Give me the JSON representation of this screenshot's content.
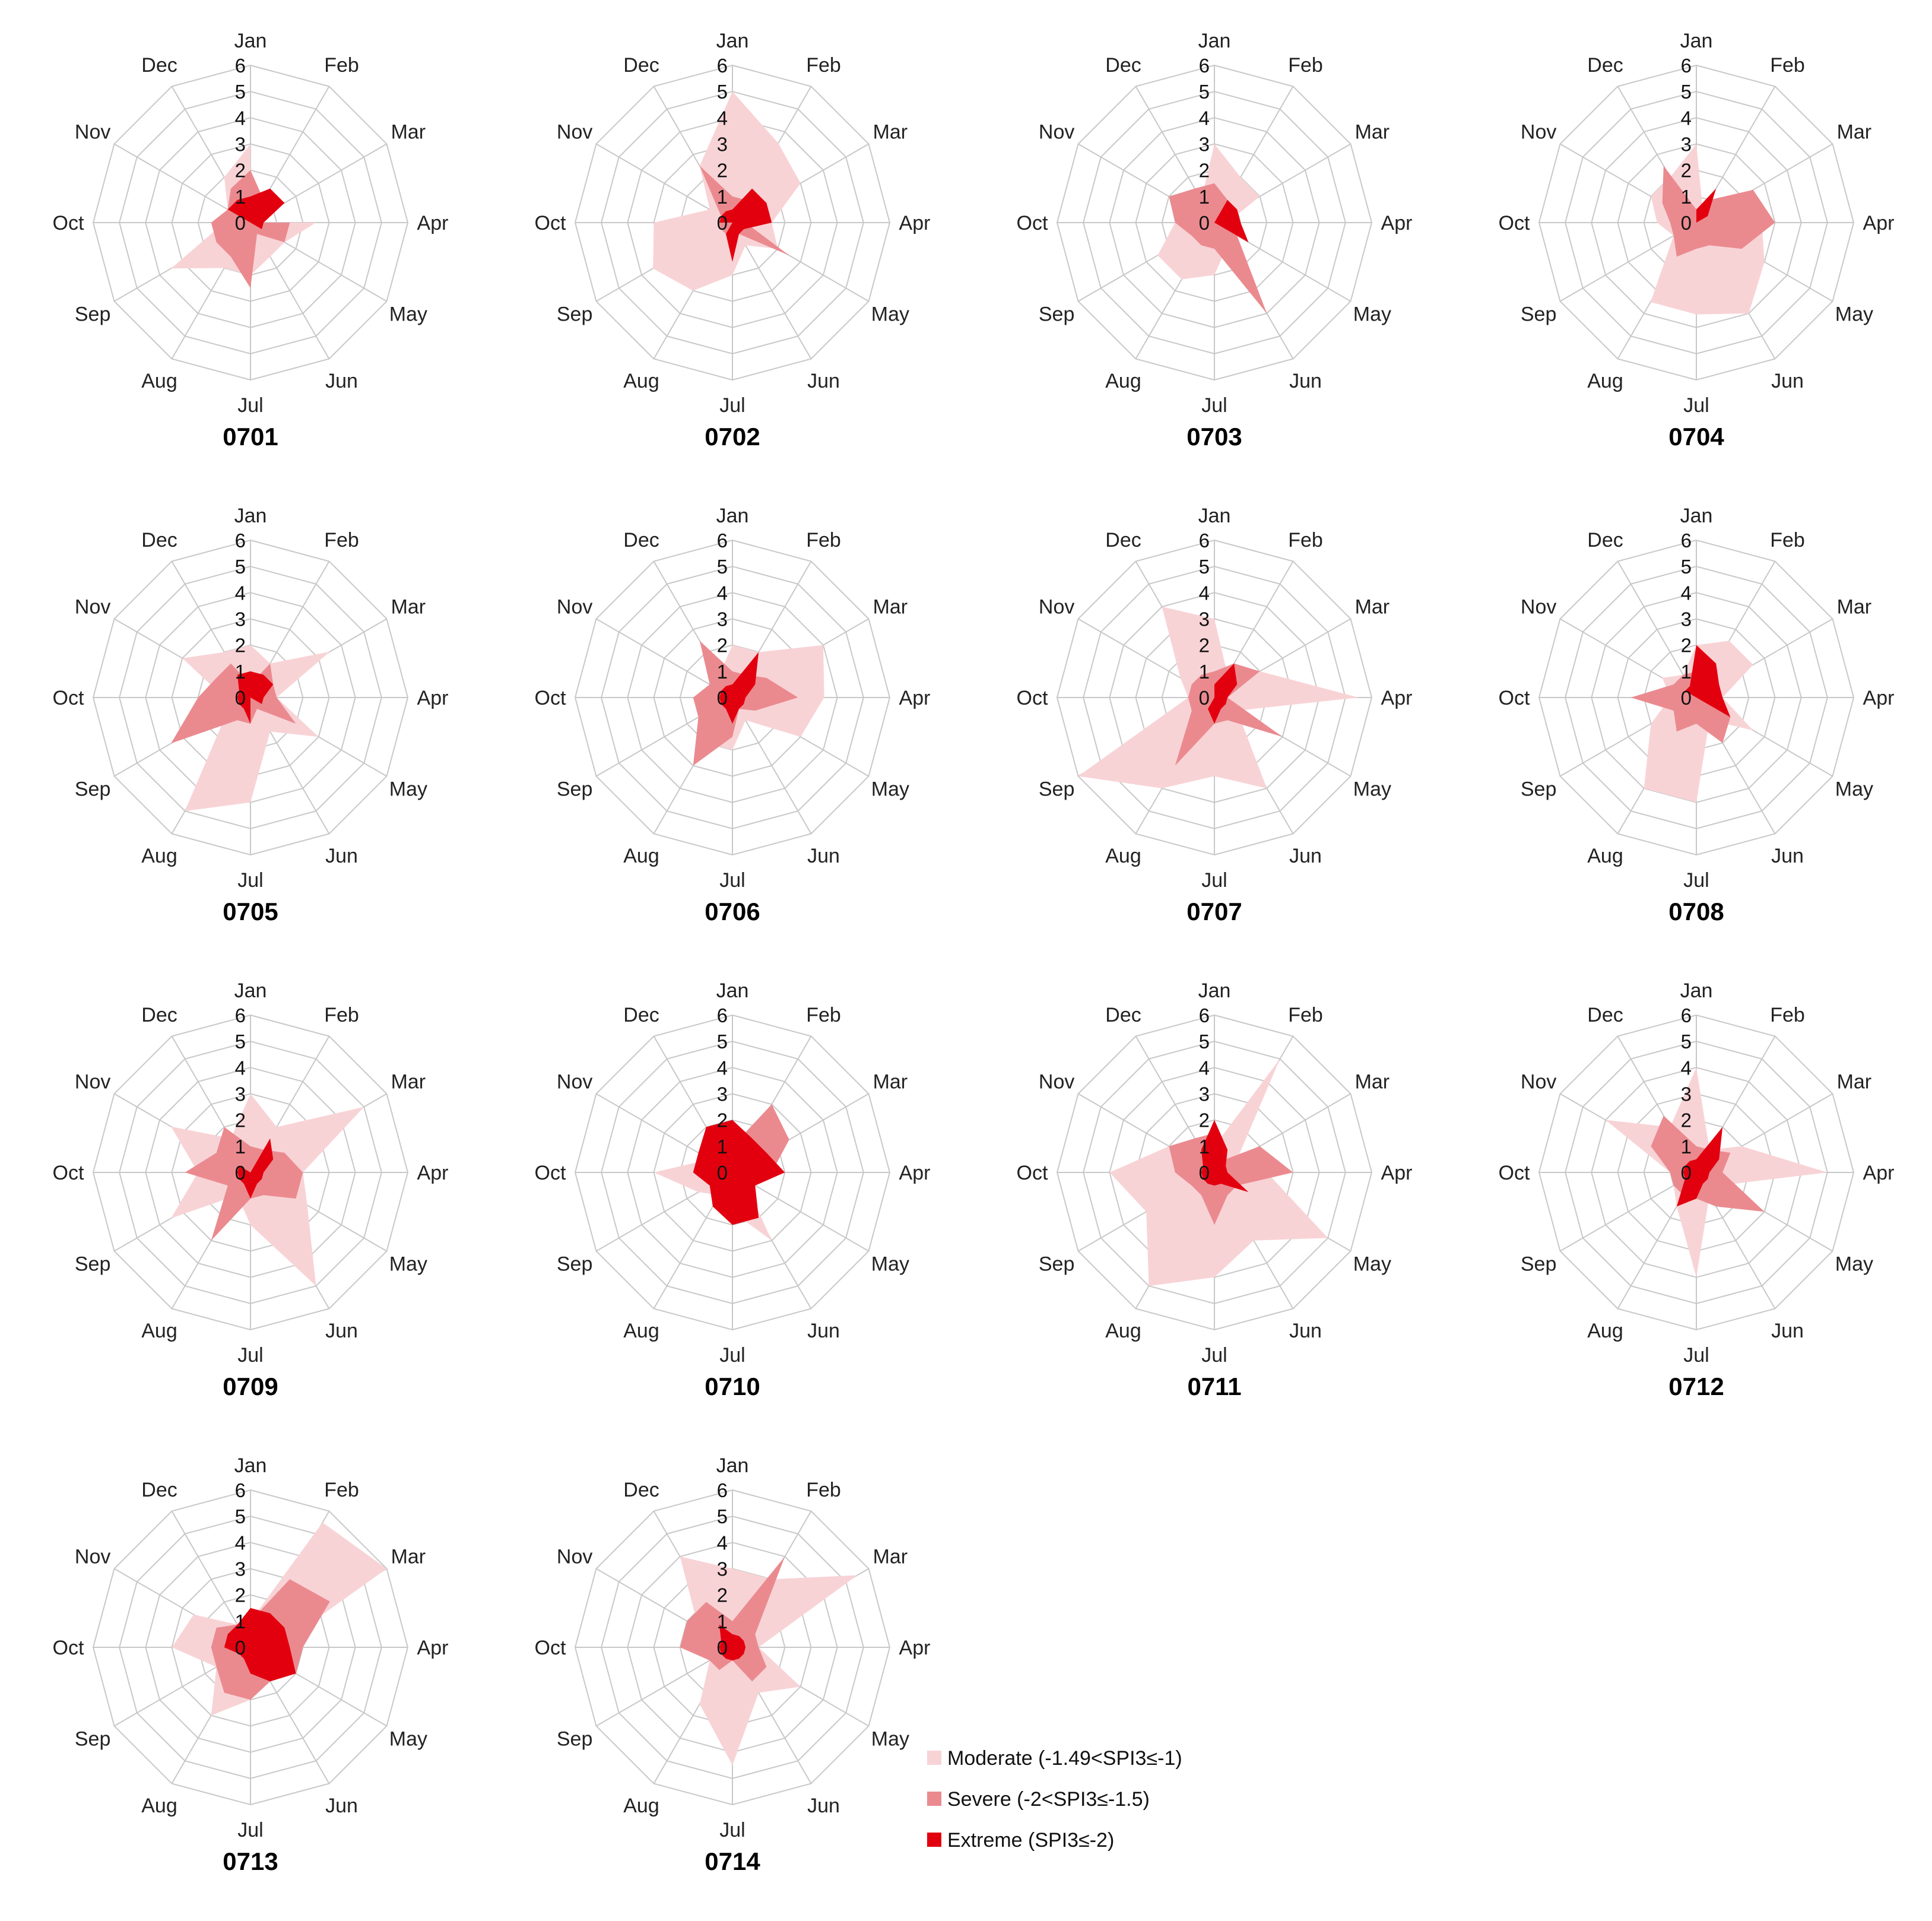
{
  "figure": {
    "legend": [
      {
        "label": "Moderate (-1.49<SPI3≤-1)",
        "color": "#f8d3d6"
      },
      {
        "label": "Severe (-2<SPI3≤-1.5)",
        "color": "#ea8a8f"
      },
      {
        "label": "Extreme (SPI3≤-2)",
        "color": "#e2000f"
      }
    ]
  },
  "chart_data": [
    {
      "type": "radar",
      "title": "0701",
      "categories": [
        "Jan",
        "Feb",
        "Mar",
        "Apr",
        "May",
        "Jun",
        "Jul",
        "Aug",
        "Sep",
        "Oct",
        "Nov",
        "Dec"
      ],
      "rmax": 6,
      "ticks": [
        "0",
        "1",
        "2",
        "3",
        "4",
        "5",
        "6"
      ],
      "series": [
        {
          "name": "Moderate",
          "values": [
            3,
            0,
            0,
            2.5,
            1.5,
            1.5,
            2,
            2,
            3.5,
            1,
            1,
            2
          ]
        },
        {
          "name": "Severe",
          "values": [
            2,
            1,
            0,
            1.5,
            1.5,
            0.5,
            2.5,
            1.5,
            1.5,
            1.5,
            1,
            1.5
          ]
        },
        {
          "name": "Extreme",
          "values": [
            1,
            1.5,
            1.5,
            0.5,
            0.5,
            0,
            1,
            0,
            0,
            0,
            1,
            1
          ]
        }
      ]
    },
    {
      "type": "radar",
      "title": "0702",
      "categories": [
        "Jan",
        "Feb",
        "Mar",
        "Apr",
        "May",
        "Jun",
        "Jul",
        "Aug",
        "Sep",
        "Oct",
        "Nov",
        "Dec"
      ],
      "rmax": 6,
      "ticks": [
        "0",
        "1",
        "2",
        "3",
        "4",
        "5",
        "6"
      ],
      "series": [
        {
          "name": "Moderate",
          "values": [
            5,
            3.5,
            3,
            1.5,
            2,
            1,
            2,
            3,
            3.5,
            3,
            1,
            2.5
          ]
        },
        {
          "name": "Severe",
          "values": [
            1,
            1,
            0.5,
            0.5,
            2.5,
            0.5,
            0.5,
            0.5,
            0.5,
            0.5,
            0.5,
            2.5
          ]
        },
        {
          "name": "Extreme",
          "values": [
            0.5,
            1.5,
            1.5,
            1.5,
            0.5,
            0.5,
            1.5,
            0.5,
            0,
            0.5,
            0.5,
            0.5
          ]
        }
      ]
    },
    {
      "type": "radar",
      "title": "0703",
      "categories": [
        "Jan",
        "Feb",
        "Mar",
        "Apr",
        "May",
        "Jun",
        "Jul",
        "Aug",
        "Sep",
        "Oct",
        "Nov",
        "Dec"
      ],
      "rmax": 6,
      "ticks": [
        "0",
        "1",
        "2",
        "3",
        "4",
        "5",
        "6"
      ],
      "series": [
        {
          "name": "Moderate",
          "values": [
            3,
            2,
            2,
            0.5,
            0.5,
            1,
            2,
            2.5,
            2.5,
            1.5,
            2,
            1
          ]
        },
        {
          "name": "Severe",
          "values": [
            1.5,
            1,
            1,
            1,
            1,
            4,
            1,
            1,
            1,
            1.5,
            2,
            1.5
          ]
        },
        {
          "name": "Extreme",
          "values": [
            0,
            1,
            1,
            1,
            1.5,
            0,
            0,
            0,
            0,
            0,
            0,
            0
          ]
        }
      ]
    },
    {
      "type": "radar",
      "title": "0704",
      "categories": [
        "Jan",
        "Feb",
        "Mar",
        "Apr",
        "May",
        "Jun",
        "Jul",
        "Aug",
        "Sep",
        "Oct",
        "Nov",
        "Dec"
      ],
      "rmax": 6,
      "ticks": [
        "0",
        "1",
        "2",
        "3",
        "4",
        "5",
        "6"
      ],
      "series": [
        {
          "name": "Moderate",
          "values": [
            3,
            0.5,
            1,
            2.5,
            3,
            4,
            3.5,
            3.5,
            1,
            1.5,
            2,
            2
          ]
        },
        {
          "name": "Severe",
          "values": [
            0.5,
            1,
            2.5,
            3,
            2,
            1,
            1,
            1.5,
            1,
            1,
            1.5,
            2.5
          ]
        },
        {
          "name": "Extreme",
          "values": [
            0.5,
            1.5,
            0.5,
            0,
            0,
            0,
            0,
            0,
            0,
            0.5,
            0,
            0
          ]
        }
      ]
    },
    {
      "type": "radar",
      "title": "0705",
      "categories": [
        "Jan",
        "Feb",
        "Mar",
        "Apr",
        "May",
        "Jun",
        "Jul",
        "Aug",
        "Sep",
        "Oct",
        "Nov",
        "Dec"
      ],
      "rmax": 6,
      "ticks": [
        "0",
        "1",
        "2",
        "3",
        "4",
        "5",
        "6"
      ],
      "series": [
        {
          "name": "Moderate",
          "values": [
            2,
            1.5,
            3.5,
            1,
            3,
            1.5,
            4,
            5,
            1,
            1,
            3,
            2
          ]
        },
        {
          "name": "Severe",
          "values": [
            0.5,
            1.5,
            1,
            1,
            2,
            0.5,
            1,
            1,
            3.5,
            2,
            1.5,
            1.5
          ]
        },
        {
          "name": "Extreme",
          "values": [
            1,
            1,
            1,
            0.5,
            0.5,
            0,
            1,
            0.5,
            0.5,
            0.5,
            0.5,
            1
          ]
        }
      ]
    },
    {
      "type": "radar",
      "title": "0706",
      "categories": [
        "Jan",
        "Feb",
        "Mar",
        "Apr",
        "May",
        "Jun",
        "Jul",
        "Aug",
        "Sep",
        "Oct",
        "Nov",
        "Dec"
      ],
      "rmax": 6,
      "ticks": [
        "0",
        "1",
        "2",
        "3",
        "4",
        "5",
        "6"
      ],
      "series": [
        {
          "name": "Moderate",
          "values": [
            2,
            2,
            4,
            3.5,
            3,
            1,
            2,
            2,
            1,
            0.5,
            1,
            1
          ]
        },
        {
          "name": "Severe",
          "values": [
            1,
            1,
            1.5,
            2.5,
            1,
            0.5,
            1.5,
            3,
            1.5,
            1.5,
            1,
            2.5
          ]
        },
        {
          "name": "Extreme",
          "values": [
            0.5,
            2,
            1,
            0.5,
            0.5,
            0.5,
            1,
            0.5,
            0.5,
            0.5,
            0.5,
            0.5
          ]
        }
      ]
    },
    {
      "type": "radar",
      "title": "0707",
      "categories": [
        "Jan",
        "Feb",
        "Mar",
        "Apr",
        "May",
        "Jun",
        "Jul",
        "Aug",
        "Sep",
        "Oct",
        "Nov",
        "Dec"
      ],
      "rmax": 6,
      "ticks": [
        "0",
        "1",
        "2",
        "3",
        "4",
        "5",
        "6"
      ],
      "series": [
        {
          "name": "Moderate",
          "values": [
            3,
            1,
            2,
            5.5,
            1,
            4,
            3,
            4,
            6,
            1,
            1.5,
            4
          ]
        },
        {
          "name": "Severe",
          "values": [
            1,
            1.5,
            2,
            0.5,
            3,
            1,
            1,
            3,
            1,
            1,
            1,
            1
          ]
        },
        {
          "name": "Extreme",
          "values": [
            0.5,
            1.5,
            1,
            0.5,
            0.5,
            0.5,
            1,
            0.5,
            0,
            0,
            0,
            0
          ]
        }
      ]
    },
    {
      "type": "radar",
      "title": "0708",
      "categories": [
        "Jan",
        "Feb",
        "Mar",
        "Apr",
        "May",
        "Jun",
        "Jul",
        "Aug",
        "Sep",
        "Oct",
        "Nov",
        "Dec"
      ],
      "rmax": 6,
      "ticks": [
        "0",
        "1",
        "2",
        "3",
        "4",
        "5",
        "6"
      ],
      "series": [
        {
          "name": "Moderate",
          "values": [
            2,
            2.5,
            2.5,
            1,
            2.5,
            1,
            4,
            4,
            2,
            1,
            1.5,
            1
          ]
        },
        {
          "name": "Severe",
          "values": [
            1,
            1,
            1,
            0.5,
            1.5,
            2,
            1,
            1.5,
            1,
            2.5,
            1,
            1
          ]
        },
        {
          "name": "Extreme",
          "values": [
            2,
            1.5,
            1,
            1,
            1.5,
            0,
            1,
            0,
            0,
            0,
            0.5,
            0.5
          ]
        }
      ]
    },
    {
      "type": "radar",
      "title": "0709",
      "categories": [
        "Jan",
        "Feb",
        "Mar",
        "Apr",
        "May",
        "Jun",
        "Jul",
        "Aug",
        "Sep",
        "Oct",
        "Nov",
        "Dec"
      ],
      "rmax": 6,
      "ticks": [
        "0",
        "1",
        "2",
        "3",
        "4",
        "5",
        "6"
      ],
      "series": [
        {
          "name": "Moderate",
          "values": [
            3,
            2,
            5,
            2,
            2.5,
            5,
            2,
            1,
            3.5,
            2,
            3.5,
            1.5
          ]
        },
        {
          "name": "Severe",
          "values": [
            1,
            1,
            1.5,
            2,
            2,
            1,
            1,
            3,
            1,
            2.5,
            1.5,
            2
          ]
        },
        {
          "name": "Extreme",
          "values": [
            0,
            1.5,
            1,
            0.5,
            0.5,
            0.5,
            1,
            0.5,
            0.5,
            0.5,
            0.5,
            0
          ]
        }
      ]
    },
    {
      "type": "radar",
      "title": "0710",
      "categories": [
        "Jan",
        "Feb",
        "Mar",
        "Apr",
        "May",
        "Jun",
        "Jul",
        "Aug",
        "Sep",
        "Oct",
        "Nov",
        "Dec"
      ],
      "rmax": 6,
      "ticks": [
        "0",
        "1",
        "2",
        "3",
        "4",
        "5",
        "6"
      ],
      "series": [
        {
          "name": "Moderate",
          "values": [
            1,
            1,
            1.5,
            0.5,
            0.5,
            3,
            1.5,
            1,
            1.5,
            3,
            1,
            1
          ]
        },
        {
          "name": "Severe",
          "values": [
            1,
            3,
            2.5,
            1.5,
            0.5,
            1,
            1,
            1,
            1,
            1,
            1.5,
            1.5
          ]
        },
        {
          "name": "Extreme",
          "values": [
            2,
            1.5,
            1.5,
            2,
            1,
            2,
            2,
            1.5,
            1,
            1.5,
            1.5,
            2
          ]
        }
      ]
    },
    {
      "type": "radar",
      "title": "0711",
      "categories": [
        "Jan",
        "Feb",
        "Mar",
        "Apr",
        "May",
        "Jun",
        "Jul",
        "Aug",
        "Sep",
        "Oct",
        "Nov",
        "Dec"
      ],
      "rmax": 6,
      "ticks": [
        "0",
        "1",
        "2",
        "3",
        "4",
        "5",
        "6"
      ],
      "series": [
        {
          "name": "Moderate",
          "values": [
            1,
            5,
            1,
            2,
            5,
            3,
            4,
            5,
            3,
            4,
            2,
            1
          ]
        },
        {
          "name": "Severe",
          "values": [
            1.5,
            0.5,
            2,
            3,
            1,
            1,
            2,
            1,
            1,
            1.5,
            2,
            1.5
          ]
        },
        {
          "name": "Extreme",
          "values": [
            2,
            1,
            0.5,
            0.5,
            1.5,
            0.5,
            0.5,
            0.5,
            0.5,
            0.5,
            0.5,
            1
          ]
        }
      ]
    },
    {
      "type": "radar",
      "title": "0712",
      "categories": [
        "Jan",
        "Feb",
        "Mar",
        "Apr",
        "May",
        "Jun",
        "Jul",
        "Aug",
        "Sep",
        "Oct",
        "Nov",
        "Dec"
      ],
      "rmax": 6,
      "ticks": [
        "0",
        "1",
        "2",
        "3",
        "4",
        "5",
        "6"
      ],
      "series": [
        {
          "name": "Moderate",
          "values": [
            4,
            1,
            2,
            5,
            1,
            1,
            4,
            1.5,
            1,
            1,
            4,
            2
          ]
        },
        {
          "name": "Severe",
          "values": [
            1,
            1,
            1.5,
            1,
            3,
            1.5,
            1,
            1,
            1,
            1,
            2,
            2.5
          ]
        },
        {
          "name": "Extreme",
          "values": [
            0.5,
            2,
            1,
            0.5,
            0.5,
            0.5,
            1,
            1.5,
            0.5,
            0.5,
            0.5,
            0.5
          ]
        }
      ]
    },
    {
      "type": "radar",
      "title": "0713",
      "categories": [
        "Jan",
        "Feb",
        "Mar",
        "Apr",
        "May",
        "Jun",
        "Jul",
        "Aug",
        "Sep",
        "Oct",
        "Nov",
        "Dec"
      ],
      "rmax": 6,
      "ticks": [
        "0",
        "1",
        "2",
        "3",
        "4",
        "5",
        "6"
      ],
      "series": [
        {
          "name": "Moderate",
          "values": [
            1,
            5.5,
            6,
            1,
            1,
            1,
            2,
            3,
            1.5,
            3,
            2.5,
            1
          ]
        },
        {
          "name": "Severe",
          "values": [
            1,
            3,
            3.5,
            2,
            2,
            1.5,
            2,
            2,
            1.5,
            1.5,
            1.5,
            1
          ]
        },
        {
          "name": "Extreme",
          "values": [
            1.5,
            1.5,
            1.5,
            1.5,
            2,
            1.5,
            1,
            0.5,
            0.5,
            1,
            1,
            1
          ]
        }
      ]
    },
    {
      "type": "radar",
      "title": "0714",
      "categories": [
        "Jan",
        "Feb",
        "Mar",
        "Apr",
        "May",
        "Jun",
        "Jul",
        "Aug",
        "Sep",
        "Oct",
        "Nov",
        "Dec"
      ],
      "rmax": 6,
      "ticks": [
        "0",
        "1",
        "2",
        "3",
        "4",
        "5",
        "6"
      ],
      "series": [
        {
          "name": "Moderate",
          "values": [
            3,
            3,
            5.5,
            1,
            3,
            2,
            4.5,
            2.5,
            1,
            1,
            1.5,
            4
          ]
        },
        {
          "name": "Severe",
          "values": [
            1,
            4,
            1,
            1,
            1.5,
            1.5,
            0.5,
            1,
            1,
            2,
            2,
            2
          ]
        },
        {
          "name": "Extreme",
          "values": [
            0.5,
            0.5,
            0.5,
            0.5,
            0.5,
            0.5,
            0.5,
            0.5,
            0.5,
            0.5,
            0.5,
            1
          ]
        }
      ]
    }
  ]
}
